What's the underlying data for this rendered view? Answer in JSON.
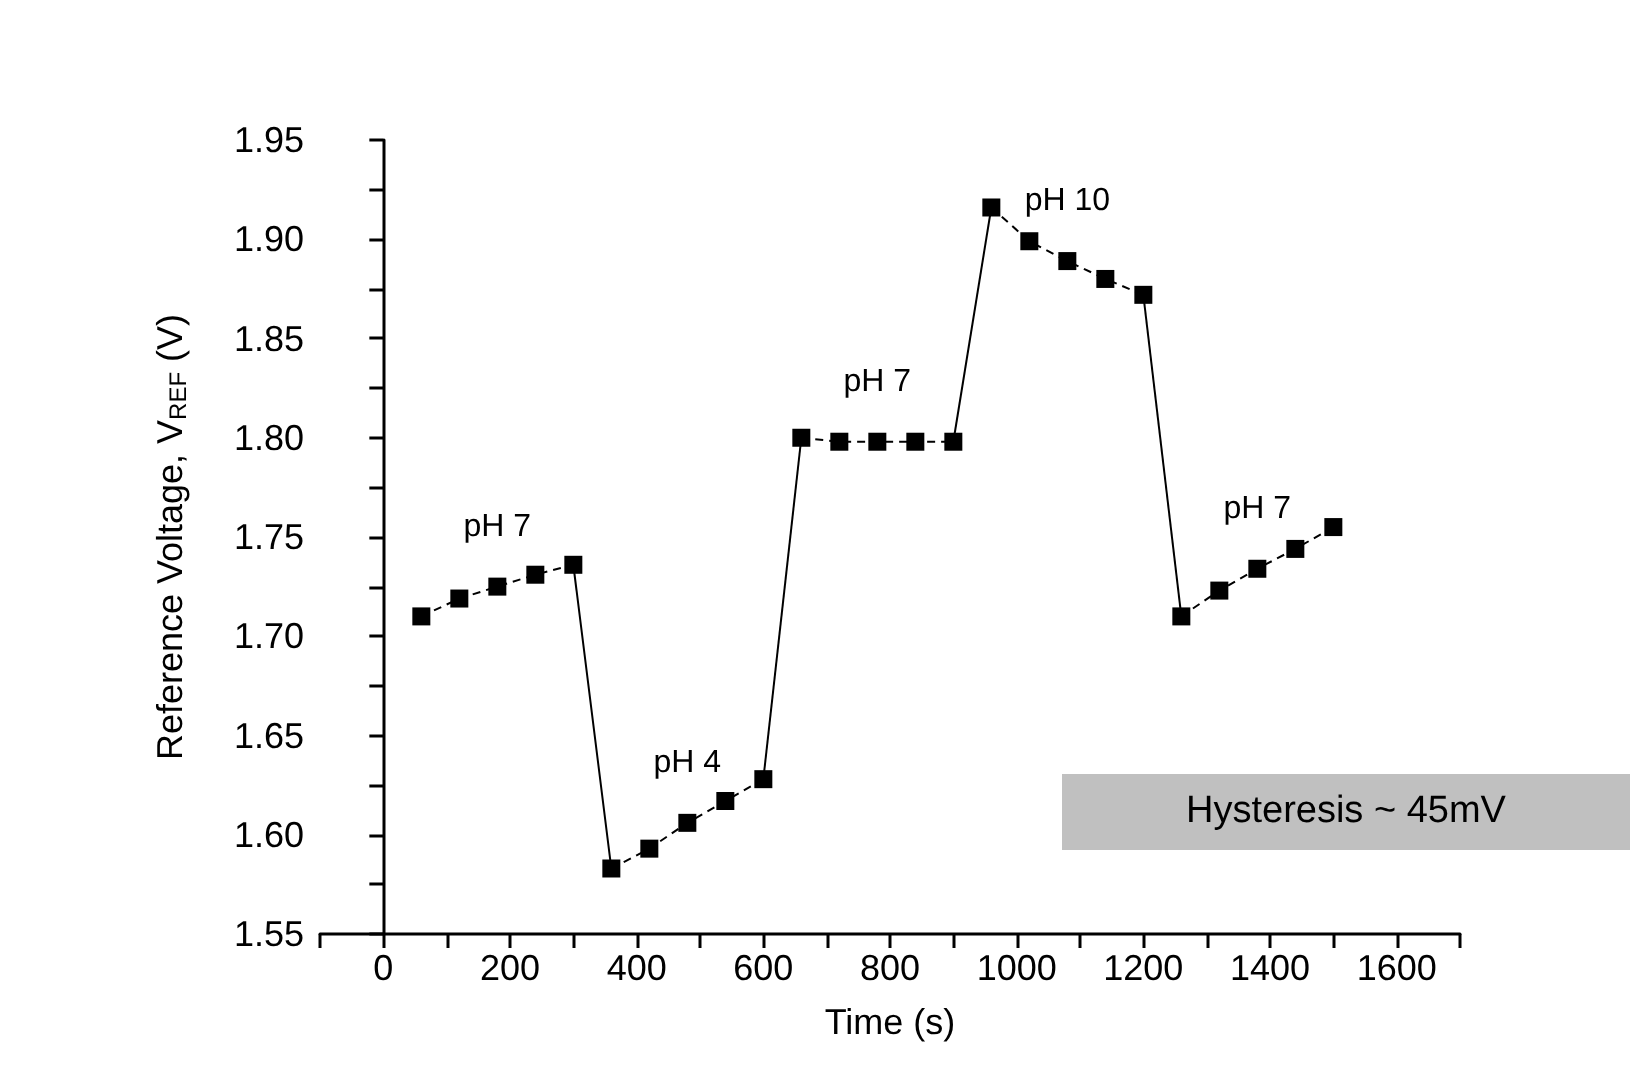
{
  "chart_data": {
    "type": "line",
    "xlabel": "Time (s)",
    "ylabel": "Reference Voltage, V$_{REF}$ (V)",
    "xlim": [
      -100,
      1700
    ],
    "xticks": [
      0,
      200,
      400,
      600,
      800,
      1000,
      1200,
      1400,
      1600
    ],
    "ylim": [
      1.55,
      1.95
    ],
    "yticks": [
      {
        "value": 1.55,
        "label": "1.55"
      },
      {
        "value": 1.6,
        "label": "1.60"
      },
      {
        "value": 1.65,
        "label": "1.65"
      },
      {
        "value": 1.7,
        "label": "1.70"
      },
      {
        "value": 1.75,
        "label": "1.75"
      },
      {
        "value": 1.8,
        "label": "1.80"
      },
      {
        "value": 1.85,
        "label": "1.85"
      },
      {
        "value": 1.9,
        "label": "1.90"
      },
      {
        "value": 1.95,
        "label": "1.95"
      }
    ],
    "grid": false,
    "series": [
      {
        "color": "#000000",
        "marker": "square",
        "line_style": "dashed",
        "x": [
          60,
          120,
          180,
          240,
          300
        ],
        "values": [
          1.71,
          1.719,
          1.725,
          1.731,
          1.736
        ]
      },
      {
        "color": "#000000",
        "line_style": "solid",
        "x": [
          300,
          360
        ],
        "values": [
          1.736,
          1.583
        ]
      },
      {
        "color": "#000000",
        "marker": "square",
        "line_style": "dashed",
        "x": [
          360,
          420,
          480,
          540,
          600
        ],
        "values": [
          1.583,
          1.593,
          1.606,
          1.617,
          1.628
        ]
      },
      {
        "color": "#000000",
        "line_style": "solid",
        "x": [
          600,
          660
        ],
        "values": [
          1.628,
          1.8
        ]
      },
      {
        "color": "#000000",
        "marker": "square",
        "line_style": "dashed",
        "x": [
          660,
          720,
          780,
          840,
          900
        ],
        "values": [
          1.8,
          1.798,
          1.798,
          1.798,
          1.798
        ]
      },
      {
        "color": "#000000",
        "line_style": "solid",
        "x": [
          900,
          960
        ],
        "values": [
          1.798,
          1.916
        ]
      },
      {
        "color": "#000000",
        "marker": "square",
        "line_style": "dashed",
        "x": [
          960,
          1020,
          1080,
          1140,
          1200
        ],
        "values": [
          1.916,
          1.899,
          1.889,
          1.88,
          1.872
        ]
      },
      {
        "color": "#000000",
        "line_style": "solid",
        "x": [
          1200,
          1260
        ],
        "values": [
          1.872,
          1.71
        ]
      },
      {
        "color": "#000000",
        "marker": "square",
        "line_style": "dashed",
        "x": [
          1260,
          1320,
          1380,
          1440,
          1500
        ],
        "values": [
          1.71,
          1.723,
          1.734,
          1.744,
          1.755
        ]
      }
    ],
    "annotations": [
      {
        "text": "pH 7",
        "x": 180,
        "y": 1.725
      },
      {
        "text": "pH 4",
        "x": 480,
        "y": 1.606
      },
      {
        "text": "pH 7",
        "x": 780,
        "y": 1.798
      },
      {
        "text": "pH 10",
        "x": 1080,
        "y": 1.889
      },
      {
        "text": "pH 7",
        "x": 1380,
        "y": 1.734
      },
      "Hysteresis ~ 45mV"
    ]
  }
}
